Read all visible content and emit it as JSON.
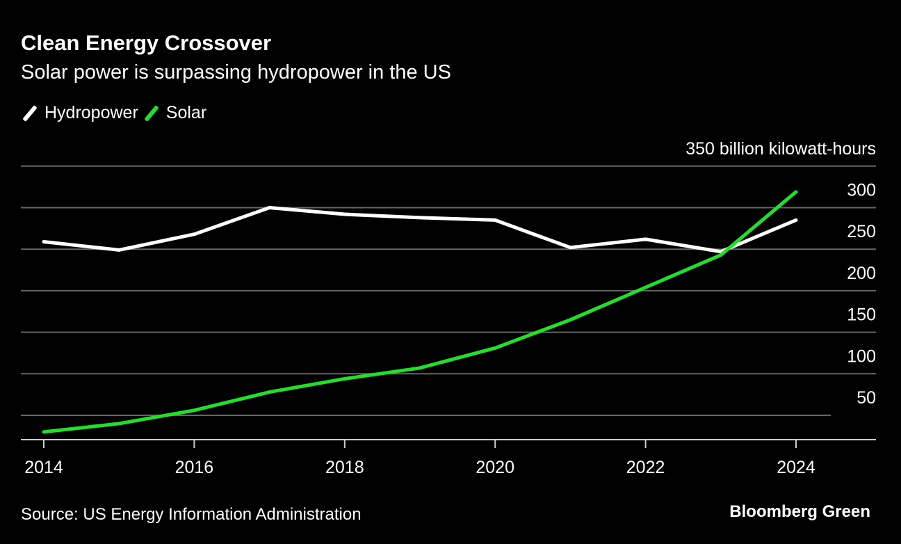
{
  "title": "Clean Energy Crossover",
  "subtitle": "Solar power is surpassing hydropower in the US",
  "source": "Source: US Energy Information Administration",
  "brand": "Bloomberg Green",
  "chart_data": {
    "type": "line",
    "x": [
      2014,
      2015,
      2016,
      2017,
      2018,
      2019,
      2020,
      2021,
      2022,
      2023,
      2024
    ],
    "xticks": [
      "2014",
      "2016",
      "2018",
      "2020",
      "2022",
      "2024"
    ],
    "yticks": [
      50,
      100,
      150,
      200,
      250,
      300,
      350
    ],
    "ytick_labels": [
      "50",
      "100",
      "150",
      "200",
      "250",
      "300",
      "350 billion kilowatt-hours"
    ],
    "ylim": [
      20,
      350
    ],
    "xlim": [
      2014,
      2025
    ],
    "grid": true,
    "legend": "top-left",
    "series": [
      {
        "name": "Hydropower",
        "color": "#ffffff",
        "values": [
          259,
          249,
          268,
          300,
          292,
          288,
          285,
          252,
          262,
          247,
          285
        ]
      },
      {
        "name": "Solar",
        "color": "#22e02a",
        "values": [
          30,
          40,
          56,
          78,
          94,
          107,
          131,
          165,
          204,
          243,
          319
        ]
      }
    ]
  }
}
